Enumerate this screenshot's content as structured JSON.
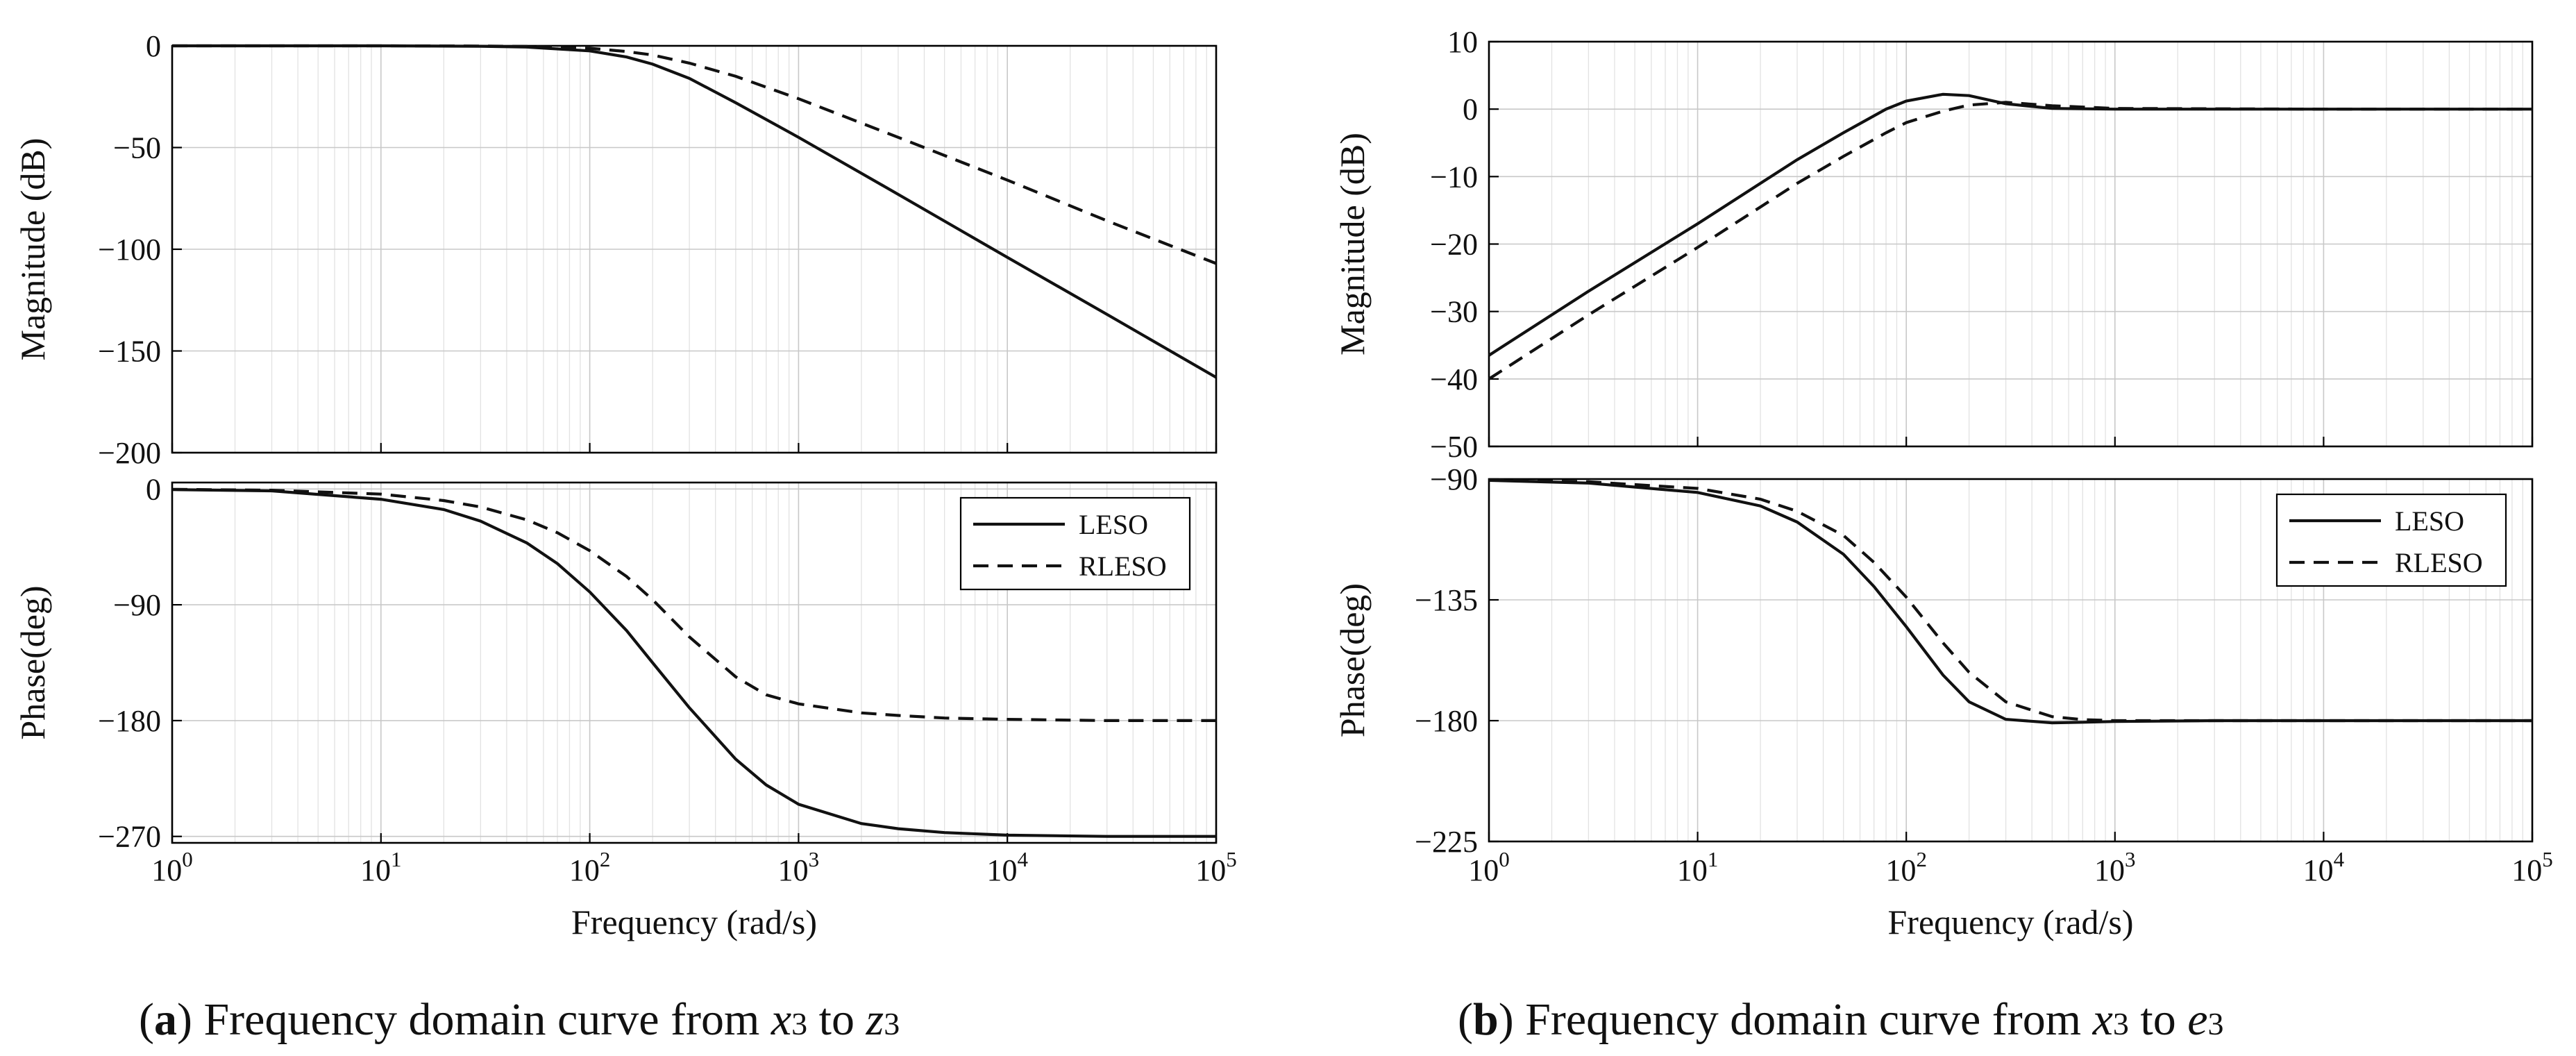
{
  "chart_data": [
    {
      "id": "a",
      "type": "line",
      "caption": {
        "label": "a",
        "text": "Frequency domain curve from",
        "var1": "x",
        "sub1": "3",
        "mid": "to",
        "var2": "z",
        "sub2": "3"
      },
      "xlabel": "Frequency (rad/s)",
      "xscale": "log",
      "xlim": [
        1,
        100000
      ],
      "xticks": [
        {
          "base": "10",
          "exp": "0"
        },
        {
          "base": "10",
          "exp": "1"
        },
        {
          "base": "10",
          "exp": "2"
        },
        {
          "base": "10",
          "exp": "3"
        },
        {
          "base": "10",
          "exp": "4"
        },
        {
          "base": "10",
          "exp": "5"
        }
      ],
      "magnitude": {
        "ylabel": "Magnitude (dB)",
        "ylim": [
          -200,
          0
        ],
        "yticks": [
          0,
          -50,
          -100,
          -150,
          -200
        ],
        "ytick_labels": [
          "0",
          "−50",
          "−100",
          "−150",
          "−200"
        ],
        "series": [
          {
            "name": "LESO",
            "style": "solid",
            "x": [
              1,
              3,
              10,
              30,
              50,
              100,
              150,
              200,
              300,
              500,
              1000,
              3000,
              10000,
              30000,
              100000
            ],
            "values": [
              0,
              0,
              0,
              -0.2,
              -0.6,
              -2.5,
              -5.5,
              -9,
              -16,
              -28,
              -45,
              -73,
              -104,
              -132,
              -163
            ]
          },
          {
            "name": "RLESO",
            "style": "dashed",
            "x": [
              1,
              3,
              10,
              30,
              50,
              100,
              150,
              200,
              300,
              500,
              1000,
              3000,
              10000,
              30000,
              100000
            ],
            "values": [
              0,
              0,
              0,
              -0.1,
              -0.3,
              -1.2,
              -2.8,
              -4.5,
              -8.5,
              -15,
              -26,
              -45,
              -66,
              -86,
              -107
            ]
          }
        ]
      },
      "phase": {
        "ylabel": "Phase(deg)",
        "ylim": [
          -275,
          5
        ],
        "yticks": [
          0,
          -90,
          -180,
          -270
        ],
        "ytick_labels": [
          "0",
          "−90",
          "−180",
          "−270"
        ],
        "legend": {
          "position": "top-right",
          "entries": [
            "LESO",
            "RLESO"
          ]
        },
        "series": [
          {
            "name": "LESO",
            "style": "solid",
            "x": [
              1,
              3,
              10,
              20,
              30,
              50,
              70,
              100,
              150,
              200,
              300,
              500,
              700,
              1000,
              2000,
              3000,
              5000,
              10000,
              30000,
              100000
            ],
            "values": [
              -0.5,
              -1.5,
              -8,
              -16,
              -25,
              -42,
              -58,
              -80,
              -110,
              -135,
              -170,
              -210,
              -230,
              -245,
              -260,
              -264,
              -267,
              -269,
              -270,
              -270
            ]
          },
          {
            "name": "RLESO",
            "style": "dashed",
            "x": [
              1,
              3,
              10,
              20,
              30,
              50,
              70,
              100,
              150,
              200,
              300,
              500,
              700,
              1000,
              2000,
              3000,
              5000,
              10000,
              30000,
              100000
            ],
            "values": [
              -0.3,
              -1,
              -4,
              -9,
              -14,
              -24,
              -34,
              -48,
              -68,
              -86,
              -115,
              -146,
              -160,
              -167,
              -174,
              -176,
              -178,
              -179,
              -180,
              -180
            ]
          }
        ]
      }
    },
    {
      "id": "b",
      "type": "line",
      "caption": {
        "label": "b",
        "text": "Frequency domain curve from",
        "var1": "x",
        "sub1": "3",
        "mid": "to",
        "var2": "e",
        "sub2": "3"
      },
      "xlabel": "Frequency (rad/s)",
      "xscale": "log",
      "xlim": [
        1,
        100000
      ],
      "xticks": [
        {
          "base": "10",
          "exp": "0"
        },
        {
          "base": "10",
          "exp": "1"
        },
        {
          "base": "10",
          "exp": "2"
        },
        {
          "base": "10",
          "exp": "3"
        },
        {
          "base": "10",
          "exp": "4"
        },
        {
          "base": "10",
          "exp": "5"
        }
      ],
      "magnitude": {
        "ylabel": "Magnitude (dB)",
        "ylim": [
          -50,
          10
        ],
        "yticks": [
          10,
          0,
          -10,
          -20,
          -30,
          -40,
          -50
        ],
        "ytick_labels": [
          "10",
          "0",
          "−10",
          "−20",
          "−30",
          "−40",
          "−50"
        ],
        "series": [
          {
            "name": "LESO",
            "style": "solid",
            "x": [
              1,
              3,
              10,
              30,
              50,
              80,
              100,
              150,
              200,
              300,
              500,
              1000,
              10000,
              100000
            ],
            "values": [
              -36.5,
              -27,
              -17,
              -7.5,
              -3.5,
              0,
              1.2,
              2.2,
              2,
              0.8,
              0.1,
              0,
              0,
              0
            ]
          },
          {
            "name": "RLESO",
            "style": "dashed",
            "x": [
              1,
              3,
              10,
              30,
              50,
              80,
              100,
              150,
              200,
              300,
              500,
              1000,
              10000,
              100000
            ],
            "values": [
              -40,
              -30.5,
              -20.5,
              -11,
              -7,
              -3.5,
              -2,
              -0.3,
              0.6,
              1,
              0.5,
              0.1,
              0,
              0
            ]
          }
        ]
      },
      "phase": {
        "ylabel": "Phase(deg)",
        "ylim": [
          -225,
          -90
        ],
        "yticks": [
          -90,
          -135,
          -180,
          -225
        ],
        "ytick_labels": [
          "−90",
          "−135",
          "−180",
          "−225"
        ],
        "legend": {
          "position": "top-right",
          "entries": [
            "LESO",
            "RLESO"
          ]
        },
        "series": [
          {
            "name": "LESO",
            "style": "solid",
            "x": [
              1,
              3,
              10,
              20,
              30,
              50,
              70,
              100,
              150,
              200,
              300,
              500,
              700,
              1000,
              3000,
              10000,
              100000
            ],
            "values": [
              -90.5,
              -91.5,
              -95,
              -100,
              -106,
              -118,
              -130,
              -145,
              -163,
              -173,
              -179.5,
              -180.8,
              -180.6,
              -180.3,
              -180,
              -180,
              -180
            ]
          },
          {
            "name": "RLESO",
            "style": "dashed",
            "x": [
              1,
              3,
              10,
              20,
              30,
              50,
              70,
              100,
              150,
              200,
              300,
              500,
              700,
              1000,
              3000,
              10000,
              100000
            ],
            "values": [
              -90.4,
              -91,
              -93.5,
              -97.5,
              -102,
              -111,
              -121,
              -134,
              -151,
              -162,
              -173,
              -178.5,
              -179.6,
              -180,
              -180,
              -180,
              -180
            ]
          }
        ]
      }
    }
  ]
}
